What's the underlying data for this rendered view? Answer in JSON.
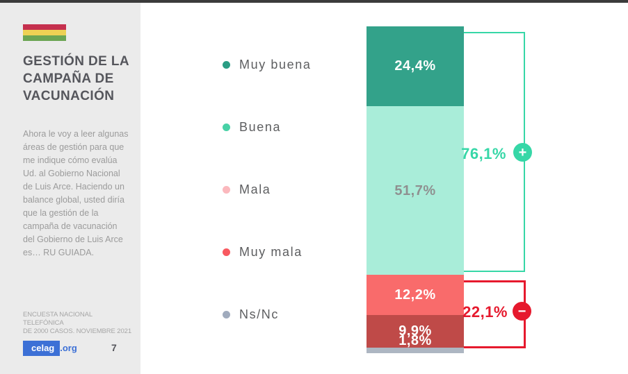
{
  "page": {
    "flag": {
      "name": "bolivia-flag",
      "stripe_colors": [
        "#c5304e",
        "#edd154",
        "#6ba553"
      ]
    },
    "title_lines": [
      "GESTIÓN DE LA",
      "CAMPAÑA DE",
      "VACUNACIÓN"
    ],
    "description": "Ahora le voy a leer algunas áreas de gestión para que me indique cómo evalúa Ud. al Gobierno Nacional de Luis Arce. Haciendo un balance global, usted diría que la gestión de la campaña de vacunación del Gobierno de Luis Arce es… RU GUIADA.",
    "footer": {
      "note_lines": [
        "ENCUESTA NACIONAL TELEFÓNICA",
        "DE 2000 CASOS. NOVIEMBRE 2021"
      ],
      "logo_brand": "celag",
      "logo_suffix": ".org",
      "page_number": "7"
    }
  },
  "chart_data": {
    "type": "bar",
    "stacked": true,
    "orientation": "vertical",
    "title": "Gestión de la campaña de vacunación",
    "categories": [
      "Muy buena",
      "Buena",
      "Mala",
      "Muy mala",
      "Ns/Nc"
    ],
    "values": [
      24.4,
      51.7,
      12.2,
      9.9,
      1.8
    ],
    "value_labels": [
      "24,4%",
      "51,7%",
      "12,2%",
      "9,9%",
      "1,8%"
    ],
    "segment_colors": [
      "#33a28a",
      "#a9edd9",
      "#f96b6b",
      "#bf4a48",
      "#adb6c2"
    ],
    "value_label_colors": [
      "#ffffff",
      "#8f9090",
      "#ffffff",
      "#ffffff",
      "#ffffff"
    ],
    "legend_dot_colors": [
      "#2a9d84",
      "#48d1a6",
      "#fbb8bd",
      "#f85960",
      "#a0abbd"
    ],
    "legend_position": "left",
    "axis": "none",
    "annotations": [
      {
        "label": "76,1%",
        "sign": "+",
        "covers": [
          "Muy buena",
          "Buena"
        ],
        "total": 76.1,
        "color": "#36d7a7"
      },
      {
        "label": "22,1%",
        "sign": "−",
        "covers": [
          "Mala",
          "Muy mala"
        ],
        "total": 22.1,
        "color": "#e6192d"
      }
    ]
  }
}
